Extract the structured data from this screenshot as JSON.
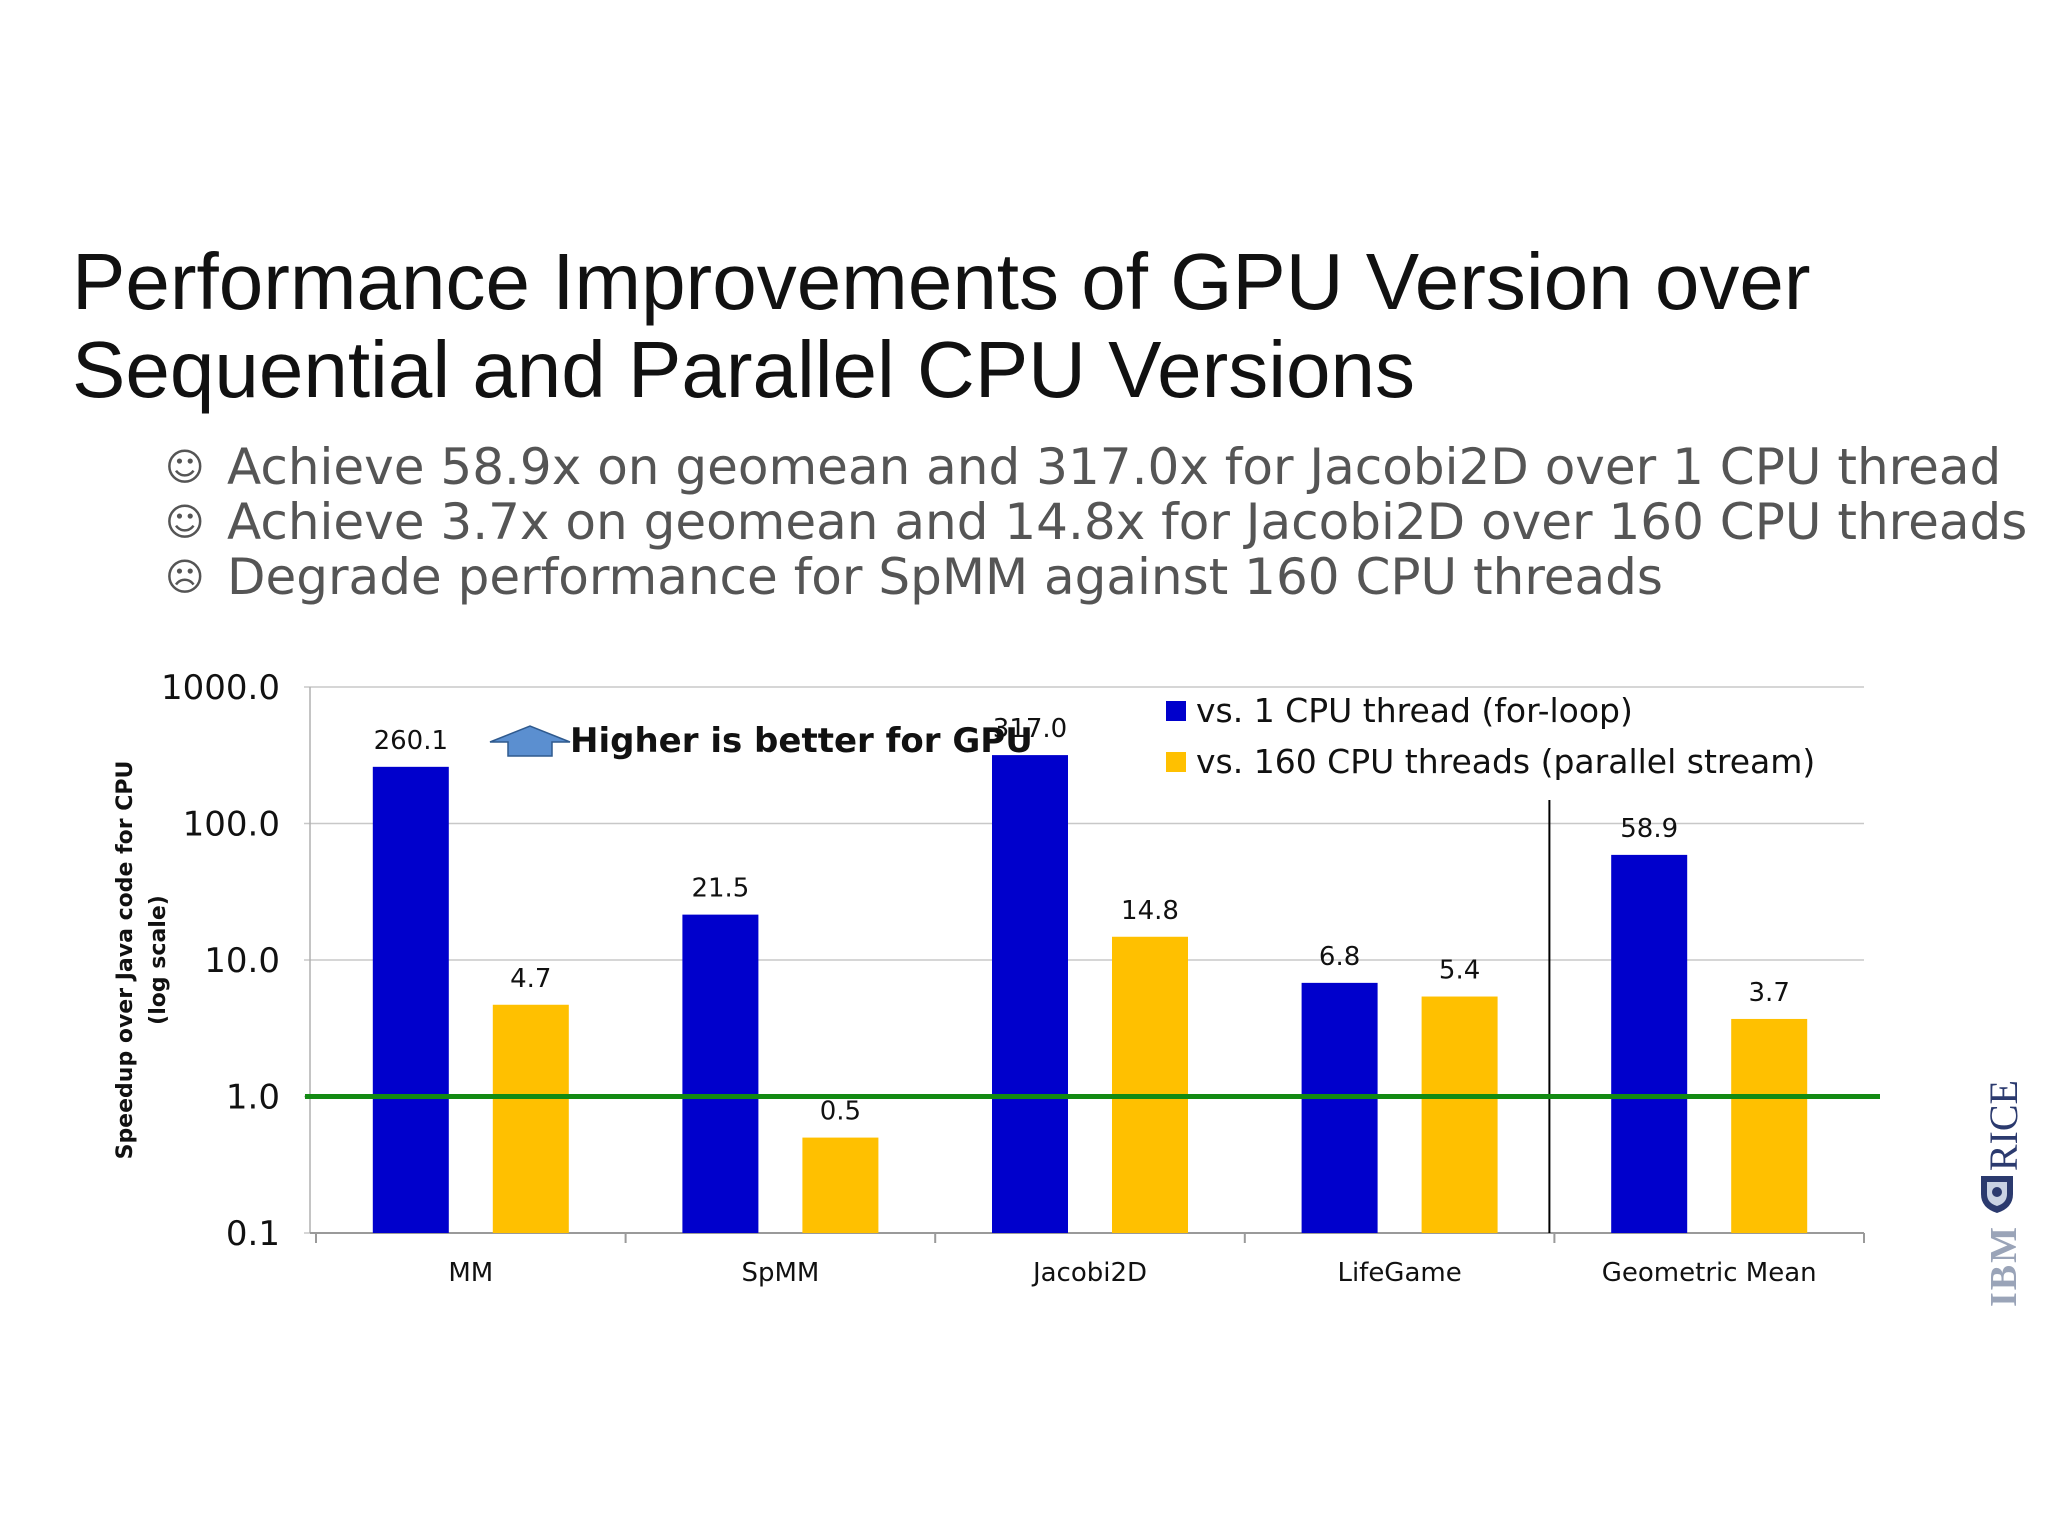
{
  "slide": {
    "title_line1": "Performance Improvements of GPU Version over",
    "title_line2": "Sequential and Parallel CPU Versions",
    "bullets": [
      {
        "icon": "smiley-icon",
        "glyph": "☺",
        "text": "Achieve 58.9x on geomean and 317.0x for Jacobi2D over 1 CPU thread"
      },
      {
        "icon": "smiley-icon",
        "glyph": "☺",
        "text": "Achieve 3.7x on geomean and 14.8x for Jacobi2D over 160 CPU threads"
      },
      {
        "icon": "frown-icon",
        "glyph": "☹",
        "text": "Degrade performance for SpMM against 160 CPU threads"
      }
    ]
  },
  "logos": {
    "rice": "RICE",
    "ibm": "IBM"
  },
  "chart_data": {
    "type": "bar",
    "y_scale": "log",
    "ylim": [
      0.1,
      1000.0
    ],
    "y_ticks": [
      "1000.0",
      "100.0",
      "10.0",
      "1.0",
      "0.1"
    ],
    "ylabel_line1": "Speedup over Java code for CPU",
    "ylabel_line2": "(log scale)",
    "xlabel": "",
    "categories": [
      "MM",
      "SpMM",
      "Jacobi2D",
      "LifeGame",
      "Geometric Mean"
    ],
    "series": [
      {
        "name": "vs. 1 CPU thread (for-loop)",
        "color": "#0000cc",
        "values": [
          260.1,
          21.5,
          317.0,
          6.8,
          58.9
        ],
        "labels": [
          "260.1",
          "21.5",
          "317.0",
          "6.8",
          "58.9"
        ]
      },
      {
        "name": "vs. 160 CPU threads (parallel stream)",
        "color": "#ffc000",
        "values": [
          4.7,
          0.5,
          14.8,
          5.4,
          3.7
        ],
        "labels": [
          "4.7",
          "0.5",
          "14.8",
          "5.4",
          "3.7"
        ]
      }
    ],
    "reference_line": {
      "value": 1.0,
      "color": "#138a13"
    },
    "separator_before_category": 4,
    "annotation": {
      "text": "Higher is better for GPU",
      "arrow": "arrow-icon",
      "arrow_color": "#5b8fd0"
    },
    "legend_position": "top-right",
    "grid": true
  }
}
